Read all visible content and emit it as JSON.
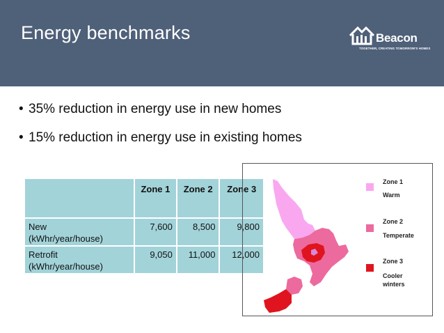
{
  "slide": {
    "title": "Energy benchmarks",
    "logo": {
      "word": "Beacon",
      "tagline": "TOGETHER, CREATING TOMORROW'S HOMES"
    }
  },
  "bullets": [
    "35% reduction in energy use in new homes",
    "15% reduction in energy use in existing homes"
  ],
  "table": {
    "headers": [
      "",
      "Zone 1",
      "Zone 2",
      "Zone 3"
    ],
    "rows": [
      {
        "label_line1": "New",
        "label_line2": "(kWhr/year/house)",
        "values": [
          "7,600",
          "8,500",
          "9,800"
        ]
      },
      {
        "label_line1": "Retrofit",
        "label_line2": "(kWhr/year/house)",
        "values": [
          "9,050",
          "11,000",
          "12,000"
        ]
      }
    ]
  },
  "legend": [
    {
      "zone": "Zone 1",
      "desc": "Warm",
      "color": "#f9a8f0"
    },
    {
      "zone": "Zone 2",
      "desc": "Temperate",
      "color": "#ec6a9e"
    },
    {
      "zone": "Zone 3",
      "desc_line1": "Cooler",
      "desc_line2": "winters",
      "color": "#e0141e"
    }
  ],
  "colors": {
    "header_bg": "#4f6079",
    "table_cell": "#a2d3d9",
    "zone1": "#f9a8f0",
    "zone2": "#ec6a9e",
    "zone3": "#e0141e"
  }
}
